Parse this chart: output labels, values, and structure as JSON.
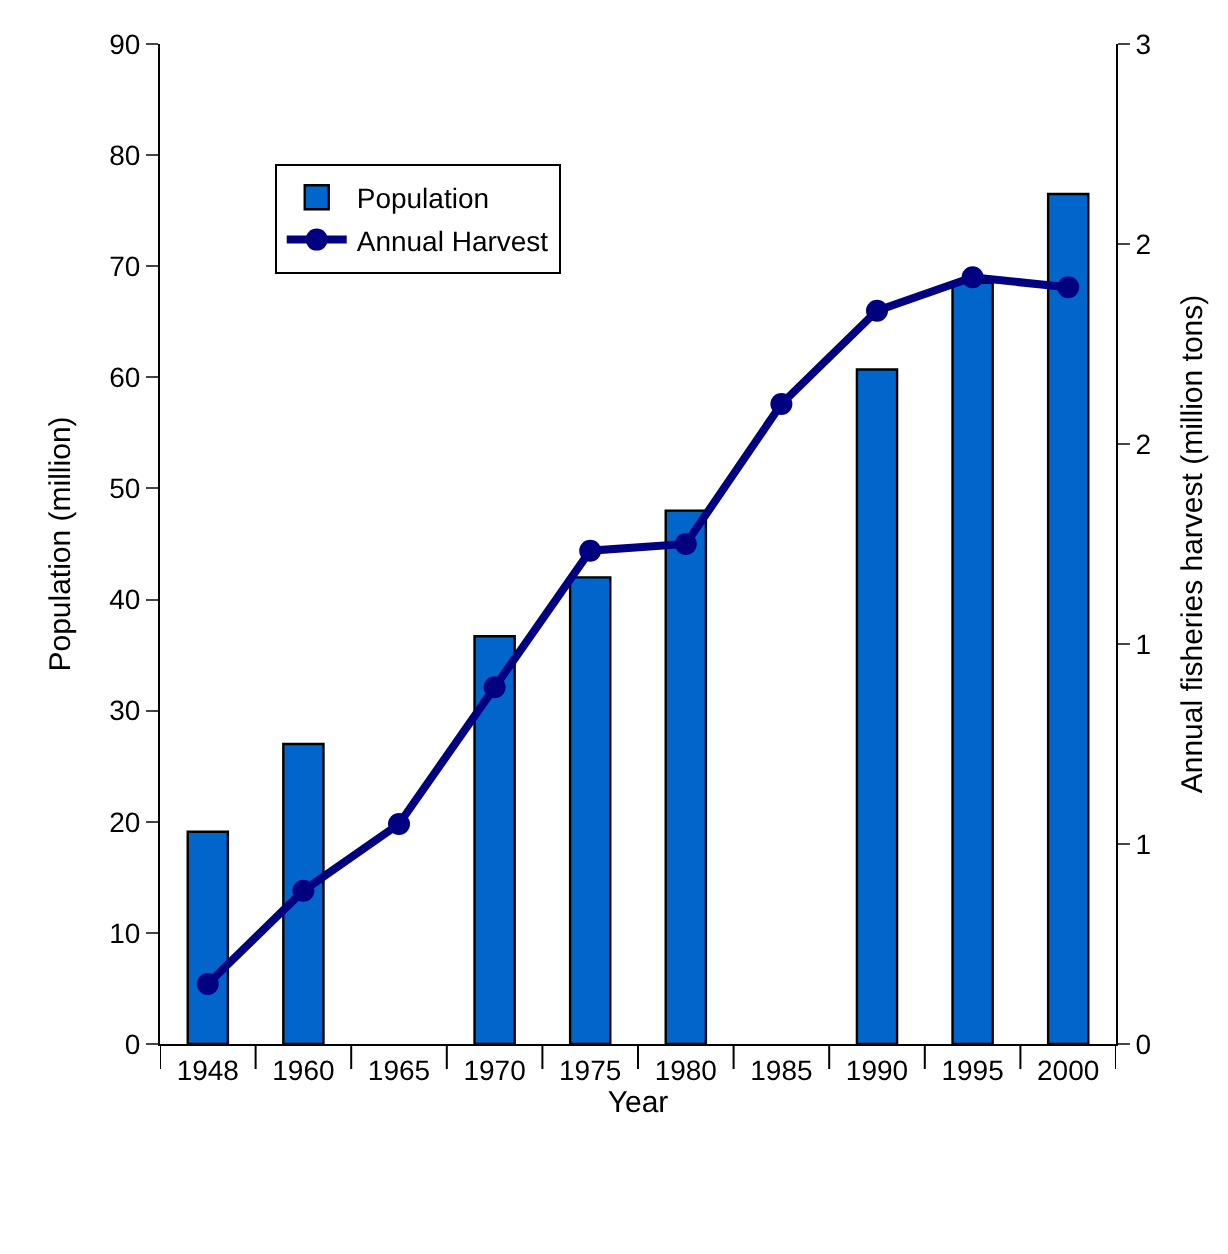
{
  "chart_data": {
    "type": "bar",
    "xlabel": "Year",
    "ylabel": "Population (million)",
    "y2label": "Annual fisheries harvest (million tons)",
    "categories": [
      "1948",
      "1960",
      "1965",
      "1970",
      "1975",
      "1980",
      "1985",
      "1990",
      "1995",
      "2000"
    ],
    "series": [
      {
        "name": "Population",
        "color": "#0066cc",
        "values": [
          19.1,
          27,
          null,
          36.7,
          42,
          48,
          null,
          60.7,
          68.5,
          76.5
        ]
      },
      {
        "name": "Annual Harvest",
        "type": "line",
        "axis": "y2",
        "color": "#000080",
        "values": [
          0.18,
          0.46,
          0.66,
          1.07,
          1.48,
          1.5,
          1.92,
          2.2,
          2.3,
          2.27
        ]
      }
    ],
    "ylim": [
      0,
      90
    ],
    "yticks": [
      0,
      10,
      20,
      30,
      40,
      50,
      60,
      70,
      80,
      90
    ],
    "y2lim": [
      0,
      3
    ],
    "y2ticks": [
      0,
      {
        "value": 0.6,
        "label": "1"
      },
      {
        "value": 1.2,
        "label": "1"
      },
      {
        "value": 1.8,
        "label": "2"
      },
      {
        "value": 2.4,
        "label": "2"
      },
      3
    ],
    "legend": "top left",
    "marker": "circle",
    "line_style": "solid"
  }
}
